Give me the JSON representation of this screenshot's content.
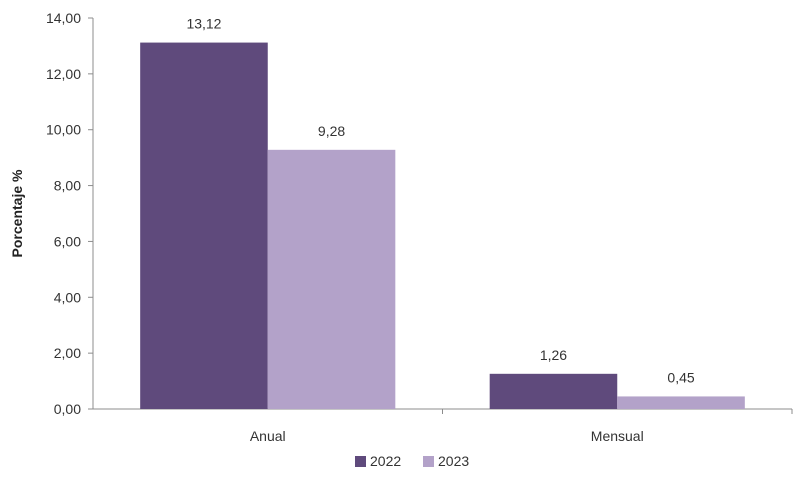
{
  "chart_data": {
    "type": "bar",
    "categories": [
      "Anual",
      "Mensual"
    ],
    "series": [
      {
        "name": "2022",
        "values": [
          13.12,
          1.26
        ],
        "labels": [
          "13,12",
          "1,26"
        ],
        "color": "#5f4a7c"
      },
      {
        "name": "2023",
        "values": [
          9.28,
          0.45
        ],
        "labels": [
          "9,28",
          "0,45"
        ],
        "color": "#b3a2c9"
      }
    ],
    "title": "",
    "xlabel": "",
    "ylabel": "Porcentaje %",
    "ylim": [
      0,
      14
    ],
    "yticks": [
      0,
      2,
      4,
      6,
      8,
      10,
      12,
      14
    ],
    "ytick_labels": [
      "0,00",
      "2,00",
      "4,00",
      "6,00",
      "8,00",
      "10,00",
      "12,00",
      "14,00"
    ],
    "grid": false,
    "legend": "bottom"
  }
}
